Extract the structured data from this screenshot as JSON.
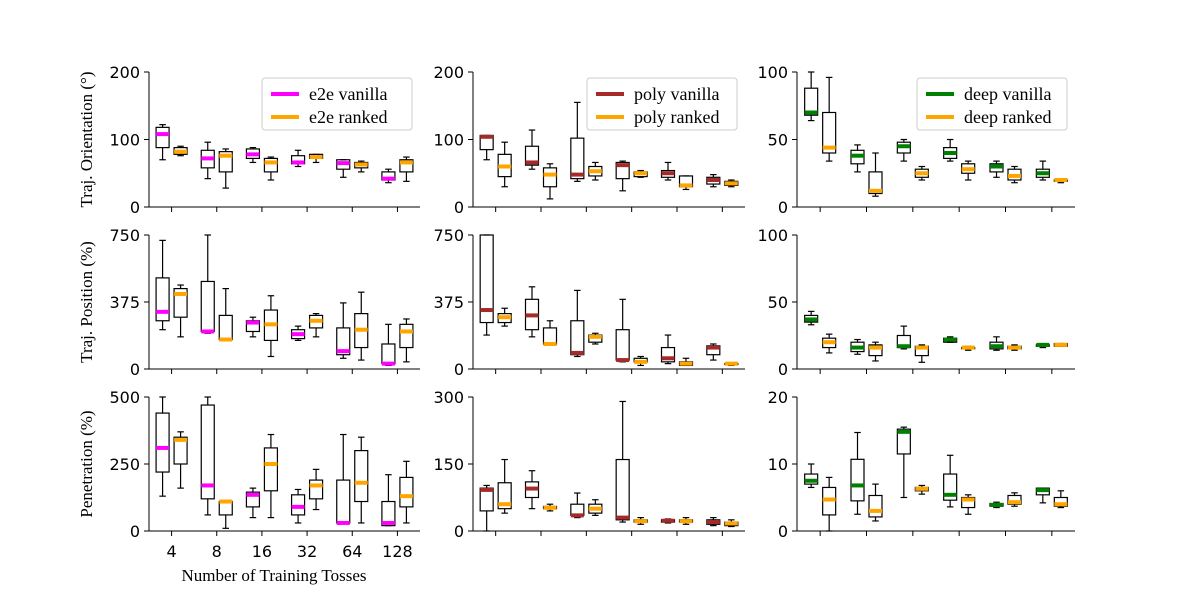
{
  "chart_data": {
    "type": "box",
    "layout": "3x3 grid of box plots",
    "xlabel": "Number of Training Tosses",
    "categories": [
      "4",
      "8",
      "16",
      "32",
      "64",
      "128"
    ],
    "row_labels": [
      "Traj. Orientation (°)",
      "Traj. Position (%)",
      "Penetration (%)"
    ],
    "models": [
      {
        "name": "e2e",
        "series": [
          {
            "name": "e2e vanilla",
            "color": "#ff00ff"
          },
          {
            "name": "e2e ranked",
            "color": "#ffa500"
          }
        ]
      },
      {
        "name": "poly",
        "series": [
          {
            "name": "poly vanilla",
            "color": "#a52a2a"
          },
          {
            "name": "poly ranked",
            "color": "#ffa500"
          }
        ]
      },
      {
        "name": "deep",
        "series": [
          {
            "name": "deep vanilla",
            "color": "#008000"
          },
          {
            "name": "deep ranked",
            "color": "#ffa500"
          }
        ]
      }
    ],
    "panels": [
      {
        "row": 0,
        "col": 0,
        "ylim": [
          0,
          200
        ],
        "yticks": [
          0,
          100,
          200
        ],
        "legend": true,
        "boxes": [
          [
            [
              70,
              88,
              108,
              118,
              122
            ],
            [
              76,
              78,
              82,
              88,
              90
            ]
          ],
          [
            [
              42,
              58,
              72,
              84,
              96
            ],
            [
              28,
              52,
              76,
              82,
              86
            ]
          ],
          [
            [
              66,
              72,
              78,
              86,
              88
            ],
            [
              40,
              52,
              66,
              72,
              74
            ]
          ],
          [
            [
              60,
              64,
              66,
              76,
              84
            ],
            [
              66,
              72,
              74,
              78,
              78
            ]
          ],
          [
            [
              44,
              56,
              65,
              70,
              70
            ],
            [
              52,
              58,
              63,
              66,
              68
            ]
          ],
          [
            [
              36,
              40,
              42,
              52,
              56
            ],
            [
              38,
              52,
              66,
              70,
              74
            ]
          ]
        ]
      },
      {
        "row": 0,
        "col": 1,
        "ylim": [
          0,
          200
        ],
        "yticks": [
          0,
          100,
          200
        ],
        "legend": true,
        "boxes": [
          [
            [
              70,
              85,
              104,
              106,
              106
            ],
            [
              30,
              45,
              60,
              78,
              96
            ]
          ],
          [
            [
              56,
              62,
              66,
              90,
              114
            ],
            [
              12,
              30,
              48,
              58,
              64
            ]
          ],
          [
            [
              38,
              42,
              48,
              102,
              155
            ],
            [
              40,
              46,
              53,
              60,
              66
            ]
          ],
          [
            [
              24,
              42,
              62,
              66,
              68
            ],
            [
              44,
              45,
              50,
              52,
              54
            ]
          ],
          [
            [
              40,
              44,
              50,
              54,
              66
            ],
            [
              26,
              30,
              32,
              46,
              46
            ]
          ],
          [
            [
              30,
              34,
              40,
              44,
              48
            ],
            [
              30,
              32,
              35,
              38,
              40
            ]
          ]
        ]
      },
      {
        "row": 0,
        "col": 2,
        "ylim": [
          0,
          100
        ],
        "yticks": [
          0,
          50,
          100
        ],
        "legend": true,
        "boxes": [
          [
            [
              64,
              68,
              70,
              88,
              100
            ],
            [
              34,
              40,
              44,
              70,
              96
            ]
          ],
          [
            [
              26,
              32,
              38,
              42,
              46
            ],
            [
              8,
              10,
              12,
              26,
              40
            ]
          ],
          [
            [
              34,
              40,
              45,
              48,
              50
            ],
            [
              20,
              22,
              25,
              28,
              30
            ]
          ],
          [
            [
              34,
              36,
              40,
              44,
              50
            ],
            [
              20,
              25,
              28,
              32,
              34
            ]
          ],
          [
            [
              22,
              26,
              30,
              32,
              34
            ],
            [
              18,
              20,
              23,
              28,
              30
            ]
          ],
          [
            [
              20,
              22,
              25,
              28,
              34
            ],
            [
              18,
              19,
              20,
              20,
              21
            ]
          ]
        ]
      },
      {
        "row": 1,
        "col": 0,
        "ylim": [
          0,
          750
        ],
        "yticks": [
          0,
          375,
          750
        ],
        "legend": false,
        "boxes": [
          [
            [
              220,
              270,
              320,
              510,
              720
            ],
            [
              180,
              290,
              420,
              450,
              470
            ]
          ],
          [
            [
              200,
              210,
              210,
              490,
              750
            ],
            [
              160,
              165,
              165,
              300,
              450
            ]
          ],
          [
            [
              180,
              210,
              260,
              270,
              290
            ],
            [
              70,
              160,
              250,
              330,
              410
            ]
          ],
          [
            [
              160,
              170,
              195,
              220,
              240
            ],
            [
              180,
              230,
              270,
              300,
              310
            ]
          ],
          [
            [
              60,
              80,
              100,
              230,
              370
            ],
            [
              50,
              120,
              220,
              310,
              430
            ]
          ],
          [
            [
              20,
              30,
              30,
              140,
              250
            ],
            [
              40,
              120,
              210,
              250,
              280
            ]
          ]
        ]
      },
      {
        "row": 1,
        "col": 1,
        "ylim": [
          0,
          750
        ],
        "yticks": [
          0,
          375,
          750
        ],
        "legend": false,
        "boxes": [
          [
            [
              190,
              260,
              330,
              750,
              750
            ],
            [
              240,
              260,
              290,
              310,
              340
            ]
          ],
          [
            [
              180,
              220,
              300,
              390,
              460
            ],
            [
              140,
              140,
              140,
              230,
              270
            ]
          ],
          [
            [
              70,
              80,
              90,
              270,
              440
            ],
            [
              140,
              150,
              180,
              190,
              200
            ]
          ],
          [
            [
              40,
              50,
              50,
              220,
              390
            ],
            [
              20,
              40,
              40,
              60,
              70
            ]
          ],
          [
            [
              30,
              40,
              60,
              120,
              190
            ],
            [
              20,
              20,
              30,
              40,
              60
            ]
          ],
          [
            [
              50,
              80,
              120,
              130,
              140
            ],
            [
              20,
              25,
              30,
              30,
              35
            ]
          ]
        ]
      },
      {
        "row": 1,
        "col": 2,
        "ylim": [
          0,
          100
        ],
        "yticks": [
          0,
          50,
          100
        ],
        "legend": false,
        "boxes": [
          [
            [
              33,
              35,
              37,
              40,
              43
            ],
            [
              12,
              16,
              20,
              23,
              26
            ]
          ],
          [
            [
              11,
              13,
              16,
              20,
              22
            ],
            [
              6,
              10,
              16,
              18,
              20
            ]
          ],
          [
            [
              15,
              16,
              17,
              25,
              32
            ],
            [
              5,
              10,
              16,
              17,
              18
            ]
          ],
          [
            [
              20,
              20,
              22,
              23,
              24
            ],
            [
              14,
              15,
              16,
              16,
              17
            ]
          ],
          [
            [
              14,
              15,
              17,
              20,
              24
            ],
            [
              14,
              15,
              16,
              17,
              18
            ]
          ],
          [
            [
              16,
              17,
              18,
              18,
              19
            ],
            [
              17,
              17,
              18,
              19,
              19
            ]
          ]
        ]
      },
      {
        "row": 2,
        "col": 0,
        "ylim": [
          0,
          500
        ],
        "yticks": [
          0,
          250,
          500
        ],
        "legend": false,
        "boxes": [
          [
            [
              130,
              220,
              310,
              440,
              500
            ],
            [
              160,
              250,
              340,
              350,
              370
            ]
          ],
          [
            [
              60,
              120,
              170,
              470,
              500
            ],
            [
              10,
              60,
              110,
              110,
              110
            ]
          ],
          [
            [
              50,
              90,
              135,
              145,
              160
            ],
            [
              50,
              150,
              250,
              310,
              360
            ]
          ],
          [
            [
              30,
              60,
              90,
              135,
              155
            ],
            [
              80,
              120,
              170,
              190,
              230
            ]
          ],
          [
            [
              30,
              30,
              30,
              190,
              360
            ],
            [
              30,
              110,
              180,
              300,
              350
            ]
          ],
          [
            [
              20,
              20,
              30,
              110,
              210
            ],
            [
              30,
              90,
              130,
              200,
              260
            ]
          ]
        ]
      },
      {
        "row": 2,
        "col": 1,
        "ylim": [
          0,
          300
        ],
        "yticks": [
          0,
          150,
          300
        ],
        "legend": false,
        "boxes": [
          [
            [
              0,
              45,
              92,
              96,
              102
            ],
            [
              40,
              50,
              60,
              108,
              160
            ]
          ],
          [
            [
              50,
              75,
              95,
              110,
              135
            ],
            [
              45,
              50,
              52,
              55,
              60
            ]
          ],
          [
            [
              30,
              35,
              35,
              60,
              85
            ],
            [
              35,
              40,
              50,
              60,
              70
            ]
          ],
          [
            [
              20,
              25,
              30,
              160,
              290
            ],
            [
              15,
              20,
              22,
              25,
              30
            ]
          ],
          [
            [
              18,
              20,
              23,
              25,
              27
            ],
            [
              15,
              20,
              22,
              25,
              30
            ]
          ],
          [
            [
              12,
              15,
              20,
              25,
              30
            ],
            [
              10,
              12,
              17,
              20,
              25
            ]
          ]
        ]
      },
      {
        "row": 2,
        "col": 2,
        "ylim": [
          0,
          20
        ],
        "yticks": [
          0,
          10,
          20
        ],
        "legend": false,
        "boxes": [
          [
            [
              6.5,
              7.0,
              7.5,
              8.5,
              10.0
            ],
            [
              0.0,
              2.4,
              4.7,
              6.5,
              8.0
            ]
          ],
          [
            [
              2.5,
              4.5,
              6.8,
              10.7,
              14.7
            ],
            [
              1.5,
              2.1,
              3.0,
              5.3,
              7.0
            ]
          ],
          [
            [
              5.0,
              11.5,
              14.8,
              15.2,
              15.5
            ],
            [
              5.5,
              6.0,
              6.3,
              6.5,
              6.8
            ]
          ],
          [
            [
              3.6,
              4.6,
              5.4,
              8.5,
              11.3
            ],
            [
              2.5,
              3.5,
              4.7,
              5.0,
              5.4
            ]
          ],
          [
            [
              3.5,
              3.7,
              3.9,
              4.1,
              4.3
            ],
            [
              3.7,
              4.0,
              4.3,
              5.3,
              5.7
            ]
          ],
          [
            [
              4.2,
              5.4,
              6.1,
              6.4,
              6.4
            ],
            [
              3.5,
              3.7,
              4.0,
              5.0,
              6.0
            ]
          ]
        ]
      }
    ]
  }
}
